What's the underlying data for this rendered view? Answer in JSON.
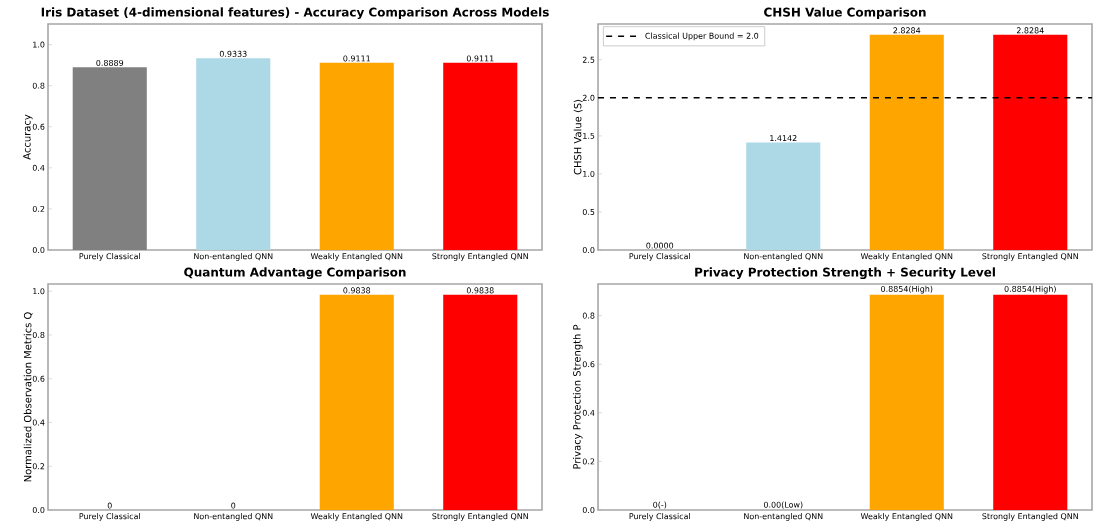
{
  "chart_data": [
    {
      "type": "bar",
      "title": "Iris Dataset (4-dimensional features) - Accuracy Comparison Across Models",
      "ylabel": "Accuracy",
      "categories": [
        "Purely Classical",
        "Non-entangled QNN",
        "Weakly Entangled QNN",
        "Strongly Entangled QNN"
      ],
      "values": [
        0.8889,
        0.9333,
        0.9111,
        0.9111
      ],
      "colors": [
        "#808080",
        "#add8e6",
        "#ffa500",
        "#ff0000"
      ],
      "value_labels": [
        "0.8889",
        "0.9333",
        "0.9111",
        "0.9111"
      ],
      "ylim": [
        0,
        1.1
      ],
      "yticks": [
        {
          "value": 0,
          "label": "0.0"
        },
        {
          "value": 0.2,
          "label": "0.2"
        },
        {
          "value": 0.4,
          "label": "0.4"
        },
        {
          "value": 0.6,
          "label": "0.6"
        },
        {
          "value": 0.8,
          "label": "0.8"
        },
        {
          "value": 1.0,
          "label": "1.0"
        }
      ]
    },
    {
      "type": "bar",
      "title": "CHSH Value Comparison",
      "ylabel": "CHSH Value ⟨S⟩",
      "categories": [
        "Purely Classical",
        "Non-entangled QNN",
        "Weakly Entangled QNN",
        "Strongly Entangled QNN"
      ],
      "values": [
        0,
        1.4142,
        2.8284,
        2.8284
      ],
      "colors": [
        "#808080",
        "#add8e6",
        "#ffa500",
        "#ff0000"
      ],
      "value_labels": [
        "0.0000",
        "1.4142",
        "2.8284",
        "2.8284"
      ],
      "ylim": [
        0,
        2.97
      ],
      "yticks": [
        {
          "value": 0,
          "label": "0.0"
        },
        {
          "value": 0.5,
          "label": "0.5"
        },
        {
          "value": 1.0,
          "label": "1.0"
        },
        {
          "value": 1.5,
          "label": "1.5"
        },
        {
          "value": 2.0,
          "label": "2.0"
        },
        {
          "value": 2.5,
          "label": "2.5"
        }
      ],
      "ref_lines": [
        {
          "axis": "y",
          "value": 2.0,
          "label": "Classical Upper Bound = 2.0",
          "color": "#000000",
          "line_style": "dashed"
        }
      ],
      "legend": "top left"
    },
    {
      "type": "bar",
      "title": "Quantum Advantage Comparison",
      "ylabel": "Normalized Observation Metrics Q",
      "categories": [
        "Purely Classical",
        "Non-entangled QNN",
        "Weakly Entangled QNN",
        "Strongly Entangled QNN"
      ],
      "values": [
        0,
        0,
        0.9838,
        0.9838
      ],
      "colors": [
        "#808080",
        "#add8e6",
        "#ffa500",
        "#ff0000"
      ],
      "value_labels": [
        "0",
        "0",
        "0.9838",
        "0.9838"
      ],
      "ylim": [
        0,
        1.033
      ],
      "yticks": [
        {
          "value": 0,
          "label": "0.0"
        },
        {
          "value": 0.2,
          "label": "0.2"
        },
        {
          "value": 0.4,
          "label": "0.4"
        },
        {
          "value": 0.6,
          "label": "0.6"
        },
        {
          "value": 0.8,
          "label": "0.8"
        },
        {
          "value": 1.0,
          "label": "1.0"
        }
      ]
    },
    {
      "type": "bar",
      "title": "Privacy Protection Strength + Security Level",
      "ylabel": "Privacy Protection Strength P",
      "categories": [
        "Purely Classical",
        "Non-entangled QNN",
        "Weakly Entangled QNN",
        "Strongly Entangled QNN"
      ],
      "values": [
        0,
        0,
        0.8854,
        0.8854
      ],
      "colors": [
        "#808080",
        "#add8e6",
        "#ffa500",
        "#ff0000"
      ],
      "value_labels": [
        "0(-)",
        "0.00(Low)",
        "0.8854(High)",
        "0.8854(High)"
      ],
      "ylim": [
        0,
        0.93
      ],
      "yticks": [
        {
          "value": 0,
          "label": "0.0"
        },
        {
          "value": 0.2,
          "label": "0.2"
        },
        {
          "value": 0.4,
          "label": "0.4"
        },
        {
          "value": 0.6,
          "label": "0.6"
        },
        {
          "value": 0.8,
          "label": "0.8"
        }
      ]
    }
  ]
}
